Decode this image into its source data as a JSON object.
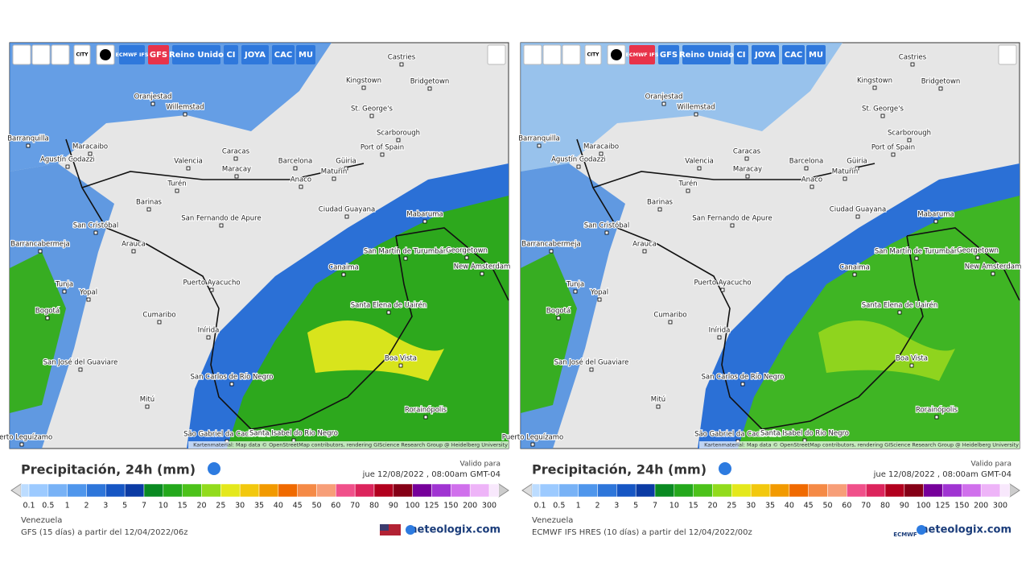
{
  "toolbar": [
    "CITY",
    "ECMWF IFS",
    "GFS",
    "Reino Unido",
    "CI",
    "JOYA",
    "CAC",
    "MU"
  ],
  "cities": [
    "Castries",
    "Kingstown",
    "Bridgetown",
    "St. George's",
    "Oranjestad",
    "Willemstad",
    "Scarborough",
    "Port of Spain",
    "Barranquilla",
    "Maracaibo",
    "Caracas",
    "Valencia",
    "Barcelona",
    "Maracay",
    "Güiria",
    "Maturín",
    "Agustín Codazzi",
    "Barinas",
    "Turén",
    "Anaco",
    "Ciudad Guayana",
    "San Fernando de Apure",
    "Mabaruma",
    "San Cristóbal",
    "Barrancabermeja",
    "Arauca",
    "Canaima",
    "San Martín de Turumbán",
    "Georgetown",
    "New Amsterdam",
    "Puerto Ayacucho",
    "Tunja",
    "Yopal",
    "Santa Elena de Uairén",
    "Bogotá",
    "Cumaribo",
    "Inírida",
    "Boa Vista",
    "San José del Guaviare",
    "San Carlos de Río Negro",
    "Mitú",
    "Rorainópolis",
    "São Gabriel da Cachoeira",
    "Santa Isabel do Rio Negro",
    "Puerto Leguízamo"
  ],
  "attribution": "Kartenmaterial: Map data © OpenStreetMap contributors, rendering GIScience Research Group @ Heidelberg University",
  "legend": {
    "title": "Precipitación, 24h (mm)",
    "valid_label": "Valido para",
    "valid_date": "jue 12/08/2022 , 08:00am GMT-04",
    "labels": [
      0.1,
      0.5,
      1,
      2,
      3,
      5,
      7,
      10,
      15,
      20,
      25,
      30,
      35,
      40,
      45,
      50,
      60,
      70,
      80,
      90,
      100,
      125,
      150,
      200,
      300
    ],
    "colors": [
      "#bcdcff",
      "#9ccaff",
      "#78b2f6",
      "#4f96ec",
      "#2e76da",
      "#1656c4",
      "#0b3ba4",
      "#0a8a22",
      "#24a81c",
      "#4cc21a",
      "#92db1c",
      "#e4e81c",
      "#f2c80e",
      "#f29a00",
      "#f06a00",
      "#f58a46",
      "#f79e78",
      "#f0508a",
      "#dc245c",
      "#b2001e",
      "#850016",
      "#76009a",
      "#a034d2",
      "#d070ec",
      "#eeb4f8",
      "#f8e8fc"
    ]
  },
  "region": "Venezuela",
  "brand": "meteologix.com",
  "panels": [
    {
      "active": 2,
      "model": "GFS (15 días) a partir del 12/04/2022/06z"
    },
    {
      "active": 1,
      "model": "ECMWF IFS HRES (10 días) a partir del 12/04/2022/00z",
      "logo": "ECMWF"
    }
  ]
}
